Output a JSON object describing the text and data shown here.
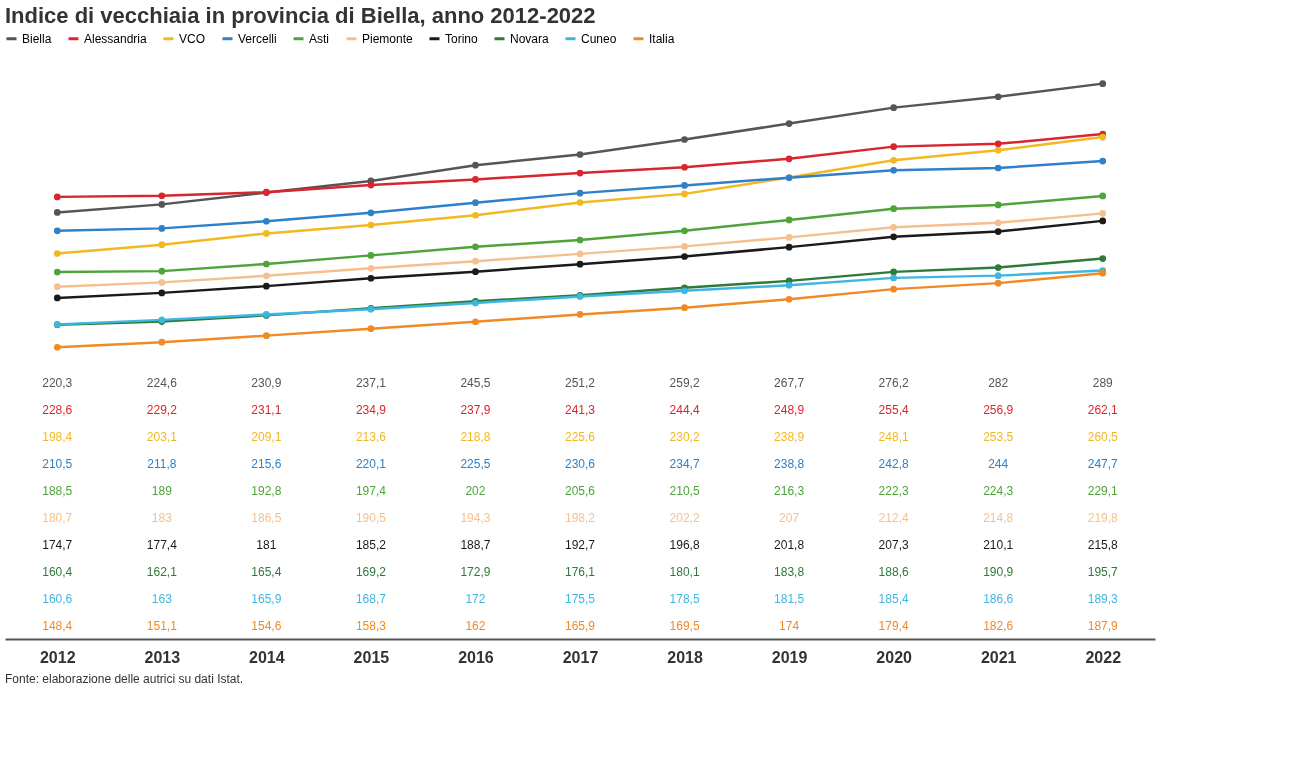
{
  "chart_data": {
    "type": "line",
    "title": "Indice di vecchiaia in provincia di Biella, anno 2012-2022",
    "categories": [
      "2012",
      "2013",
      "2014",
      "2015",
      "2016",
      "2017",
      "2018",
      "2019",
      "2020",
      "2021",
      "2022"
    ],
    "series": [
      {
        "name": "Biella",
        "color": "#555555",
        "values": [
          220.3,
          224.6,
          230.9,
          237.1,
          245.5,
          251.2,
          259.2,
          267.7,
          276.2,
          282,
          289
        ],
        "value_labels": [
          "220,3",
          "224,6",
          "230,9",
          "237,1",
          "245,5",
          "251,2",
          "259,2",
          "267,7",
          "276,2",
          "282",
          "289"
        ]
      },
      {
        "name": "Alessandria",
        "color": "#d9262e",
        "values": [
          228.6,
          229.2,
          231.1,
          234.9,
          237.9,
          241.3,
          244.4,
          248.9,
          255.4,
          256.9,
          262.1
        ],
        "value_labels": [
          "228,6",
          "229,2",
          "231,1",
          "234,9",
          "237,9",
          "241,3",
          "244,4",
          "248,9",
          "255,4",
          "256,9",
          "262,1"
        ]
      },
      {
        "name": "VCO",
        "color": "#f2b822",
        "values": [
          198.4,
          203.1,
          209.1,
          213.6,
          218.8,
          225.6,
          230.2,
          238.9,
          248.1,
          253.5,
          260.5
        ],
        "value_labels": [
          "198,4",
          "203,1",
          "209,1",
          "213,6",
          "218,8",
          "225,6",
          "230,2",
          "238,9",
          "248,1",
          "253,5",
          "260,5"
        ]
      },
      {
        "name": "Vercelli",
        "color": "#2f80c8",
        "values": [
          210.5,
          211.8,
          215.6,
          220.1,
          225.5,
          230.6,
          234.7,
          238.8,
          242.8,
          244,
          247.7
        ],
        "value_labels": [
          "210,5",
          "211,8",
          "215,6",
          "220,1",
          "225,5",
          "230,6",
          "234,7",
          "238,8",
          "242,8",
          "244",
          "247,7"
        ]
      },
      {
        "name": "Asti",
        "color": "#4ea33a",
        "values": [
          188.5,
          189,
          192.8,
          197.4,
          202,
          205.6,
          210.5,
          216.3,
          222.3,
          224.3,
          229.1
        ],
        "value_labels": [
          "188,5",
          "189",
          "192,8",
          "197,4",
          "202",
          "205,6",
          "210,5",
          "216,3",
          "222,3",
          "224,3",
          "229,1"
        ]
      },
      {
        "name": "Piemonte",
        "color": "#f5c08f",
        "values": [
          180.7,
          183,
          186.5,
          190.5,
          194.3,
          198.2,
          202.2,
          207,
          212.4,
          214.8,
          219.8
        ],
        "value_labels": [
          "180,7",
          "183",
          "186,5",
          "190,5",
          "194,3",
          "198,2",
          "202,2",
          "207",
          "212,4",
          "214,8",
          "219,8"
        ]
      },
      {
        "name": "Torino",
        "color": "#1a1a1a",
        "values": [
          174.7,
          177.4,
          181,
          185.2,
          188.7,
          192.7,
          196.8,
          201.8,
          207.3,
          210.1,
          215.8
        ],
        "value_labels": [
          "174,7",
          "177,4",
          "181",
          "185,2",
          "188,7",
          "192,7",
          "196,8",
          "201,8",
          "207,3",
          "210,1",
          "215,8"
        ]
      },
      {
        "name": "Novara",
        "color": "#2d7a3a",
        "values": [
          160.4,
          162.1,
          165.4,
          169.2,
          172.9,
          176.1,
          180.1,
          183.8,
          188.6,
          190.9,
          195.7
        ],
        "value_labels": [
          "160,4",
          "162,1",
          "165,4",
          "169,2",
          "172,9",
          "176,1",
          "180,1",
          "183,8",
          "188,6",
          "190,9",
          "195,7"
        ]
      },
      {
        "name": "Cuneo",
        "color": "#3fb6e0",
        "values": [
          160.6,
          163,
          165.9,
          168.7,
          172,
          175.5,
          178.5,
          181.5,
          185.4,
          186.6,
          189.3
        ],
        "value_labels": [
          "160,6",
          "163",
          "165,9",
          "168,7",
          "172",
          "175,5",
          "178,5",
          "181,5",
          "185,4",
          "186,6",
          "189,3"
        ]
      },
      {
        "name": "Italia",
        "color": "#f08a24",
        "values": [
          148.4,
          151.1,
          154.6,
          158.3,
          162,
          165.9,
          169.5,
          174,
          179.4,
          182.6,
          187.9
        ],
        "value_labels": [
          "148,4",
          "151,1",
          "154,6",
          "158,3",
          "162",
          "165,9",
          "169,5",
          "174",
          "179,4",
          "182,6",
          "187,9"
        ]
      }
    ],
    "annotations": [
      "Fonte: elaborazione delle autrici su dati Istat."
    ],
    "legend": "top left",
    "marker": "circle",
    "line_style": "solid",
    "grid": false
  }
}
